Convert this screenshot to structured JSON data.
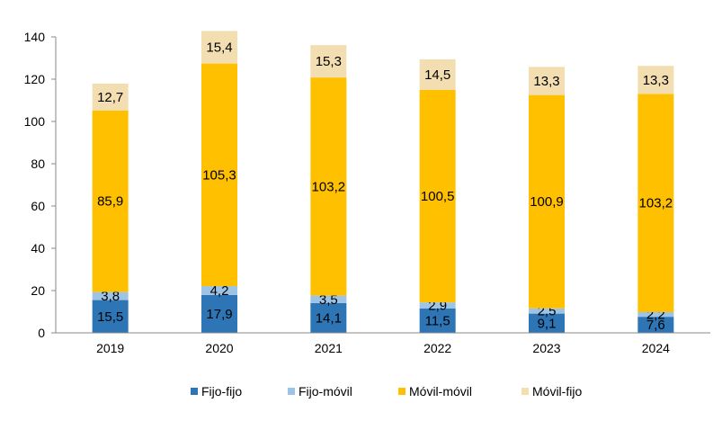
{
  "chart_data": {
    "type": "bar",
    "stacked": true,
    "title": "",
    "xlabel": "",
    "ylabel": "",
    "ylim": [
      0,
      140
    ],
    "yticks": [
      0,
      20,
      40,
      60,
      80,
      100,
      120,
      140
    ],
    "grid": false,
    "legend_position": "bottom",
    "categories": [
      "2019",
      "2020",
      "2021",
      "2022",
      "2023",
      "2024"
    ],
    "series": [
      {
        "name": "Fijo-fijo",
        "color": "#2E75B6",
        "values": [
          15.5,
          17.9,
          14.1,
          11.5,
          9.1,
          7.6
        ],
        "labels": [
          "15,5",
          "17,9",
          "14,1",
          "11,5",
          "9,1",
          "7,6"
        ]
      },
      {
        "name": "Fijo-móvil",
        "color": "#9DC3E6",
        "values": [
          3.8,
          4.2,
          3.5,
          2.9,
          2.5,
          2.2
        ],
        "labels": [
          "3,8",
          "4,2",
          "3,5",
          "2,9",
          "2,5",
          "2,2"
        ]
      },
      {
        "name": "Móvil-móvil",
        "color": "#FFC000",
        "values": [
          85.9,
          105.3,
          103.2,
          100.5,
          100.9,
          103.2
        ],
        "labels": [
          "85,9",
          "105,3",
          "103,2",
          "100,5",
          "100,9",
          "103,2"
        ]
      },
      {
        "name": "Móvil-fijo",
        "color": "#F2DEB0",
        "values": [
          12.7,
          15.4,
          15.3,
          14.5,
          13.3,
          13.3
        ],
        "labels": [
          "12,7",
          "15,4",
          "15,3",
          "14,5",
          "13,3",
          "13,3"
        ]
      }
    ]
  }
}
